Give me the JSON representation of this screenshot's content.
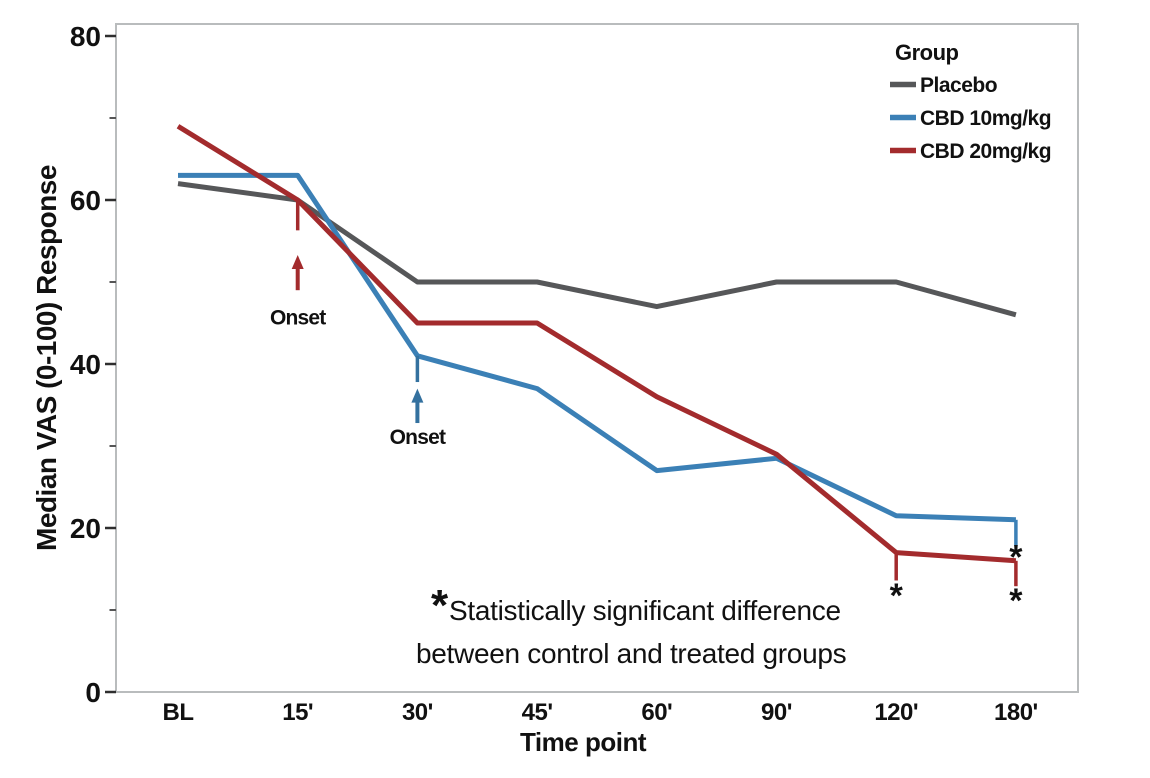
{
  "chart_data": {
    "type": "line",
    "title": "",
    "xlabel": "Time point",
    "ylabel": "Median VAS (0-100) Response",
    "categories": [
      "BL",
      "15'",
      "30'",
      "45'",
      "60'",
      "90'",
      "120'",
      "180'"
    ],
    "ylim": [
      0,
      80
    ],
    "y_major_ticks": [
      0,
      20,
      40,
      60,
      80
    ],
    "y_minor_ticks": [
      10,
      30,
      50,
      70
    ],
    "grid": false,
    "plot_border_color": "#b9bcbd",
    "legend": {
      "title": "Group",
      "position": "top-right"
    },
    "series": [
      {
        "name": "Placebo",
        "color": "#565759",
        "values": [
          62,
          60,
          50,
          50,
          47,
          50,
          50,
          46
        ]
      },
      {
        "name": "CBD 10mg/kg",
        "color": "#3b80b6",
        "values": [
          63,
          63,
          41,
          37,
          27,
          28.5,
          21.5,
          21
        ]
      },
      {
        "name": "CBD 20mg/kg",
        "color": "#a32b2d",
        "values": [
          69,
          60,
          45,
          45,
          36,
          29,
          17,
          16
        ]
      }
    ],
    "onset_annotations": [
      {
        "series": "CBD 20mg/kg",
        "category": "15'",
        "label": "Onset",
        "color": "#a32b2d",
        "whisker_from": 60,
        "whisker_to": 56.3,
        "arrow_tip": 53.3,
        "arrow_tail": 49,
        "label_value": 45.8
      },
      {
        "series": "CBD 10mg/kg",
        "category": "30'",
        "label": "Onset",
        "color": "#34719f",
        "whisker_from": 41,
        "whisker_to": 37.8,
        "arrow_tip": 37,
        "arrow_tail": 32.8,
        "label_value": 31.2
      }
    ],
    "significance_markers": [
      {
        "series": "CBD 20mg/kg",
        "category": "120'",
        "symbol": "*",
        "color": "#a32b2d",
        "whisker_from": 17,
        "whisker_to": 13.6,
        "symbol_value": 12.3
      },
      {
        "series": "CBD 10mg/kg",
        "category": "180'",
        "symbol": "*",
        "color": "#3b80b6",
        "whisker_from": 21,
        "whisker_to": 17.8,
        "symbol_value": 17.0
      },
      {
        "series": "CBD 20mg/kg",
        "category": "180'",
        "symbol": "*",
        "color": "#a32b2d",
        "whisker_from": 16,
        "whisker_to": 12.9,
        "symbol_value": 11.7
      }
    ],
    "footnote": {
      "symbol": "*",
      "line1": "Statistically significant difference",
      "line2": "between control and treated groups"
    }
  }
}
